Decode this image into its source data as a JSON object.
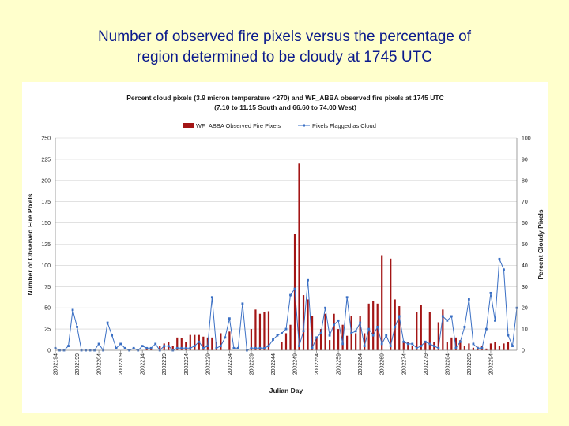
{
  "slide": {
    "title_line1": "Number of observed fire pixels versus the percentage of",
    "title_line2": "region determined to be cloudy at 1745 UTC"
  },
  "chart_data": {
    "type": "bar+line",
    "title_line1": "Percent cloud pixels (3.9 micron temperature <270) and WF_ABBA observed fire pixels at 1745 UTC",
    "title_line2": "(7.10 to 11.15 South and 66.60 to 74.00 West)",
    "xlabel": "Julian Day",
    "ylabel_left": "Number of Observed Fire Pixels",
    "ylabel_right": "Percent Cloudy Pixels",
    "ylim_left": [
      0,
      250
    ],
    "ylim_right": [
      0,
      100
    ],
    "yticks_left": [
      0,
      25,
      50,
      75,
      100,
      125,
      150,
      175,
      200,
      225,
      250
    ],
    "yticks_right": [
      0,
      10,
      20,
      30,
      40,
      50,
      60,
      70,
      80,
      90,
      100
    ],
    "x_tick_labels": [
      "2002194",
      "2002199",
      "2002204",
      "2002209",
      "2002214",
      "2002219",
      "2002224",
      "2002229",
      "2002234",
      "2002239",
      "2002244",
      "2002249",
      "2002254",
      "2002259",
      "2002264",
      "2002269",
      "2002274",
      "2002279",
      "2002284",
      "2002289",
      "2002294"
    ],
    "days_start": 2002194,
    "colors": {
      "bars": "#a31515",
      "line": "#3a6fc4",
      "grid": "#cfcfcf"
    },
    "legend": {
      "bars": "WF_ABBA Observed Fire Pixels",
      "line": "Pixels Flagged as Cloud",
      "position": "top-center"
    },
    "series": [
      {
        "name": "WF_ABBA Observed Fire Pixels",
        "axis": "left",
        "values": [
          0,
          0,
          0,
          0,
          0,
          0,
          0,
          0,
          0,
          0,
          0,
          0,
          0,
          0,
          0,
          0,
          0,
          0,
          0,
          0,
          0,
          2,
          3,
          0,
          5,
          8,
          10,
          5,
          15,
          14,
          10,
          18,
          18,
          18,
          16,
          15,
          15,
          10,
          20,
          0,
          22,
          0,
          0,
          0,
          0,
          25,
          48,
          43,
          45,
          46,
          0,
          0,
          10,
          20,
          30,
          137,
          220,
          65,
          60,
          40,
          15,
          25,
          43,
          12,
          43,
          25,
          30,
          17,
          40,
          20,
          40,
          20,
          55,
          58,
          55,
          112,
          0,
          108,
          60,
          52,
          10,
          10,
          5,
          45,
          53,
          10,
          45,
          10,
          33,
          48,
          10,
          15,
          15,
          12,
          5,
          8,
          3,
          4,
          5,
          2,
          8,
          10,
          5,
          8,
          10
        ]
      },
      {
        "name": "Pixels Flagged as Cloud",
        "axis": "right",
        "values": [
          1,
          0,
          0,
          2,
          19,
          11,
          0,
          0,
          0,
          0,
          3,
          0,
          13,
          7,
          1,
          3,
          1,
          0,
          1,
          0,
          2,
          1,
          1,
          3,
          0,
          2,
          2,
          0,
          1,
          1,
          1,
          1,
          2,
          4,
          1,
          2,
          25,
          1,
          2,
          6,
          15,
          1,
          1,
          22,
          0,
          1,
          1,
          1,
          1,
          2,
          5,
          7,
          8,
          10,
          26,
          29,
          2,
          9,
          33,
          1,
          6,
          8,
          20,
          7,
          12,
          14,
          3,
          25,
          8,
          9,
          13,
          2,
          10,
          7,
          11,
          3,
          7,
          2,
          11,
          16,
          4,
          3,
          3,
          1,
          2,
          4,
          3,
          2,
          1,
          16,
          14,
          16,
          1,
          4,
          11,
          24,
          3,
          1,
          1,
          10,
          27,
          14,
          43,
          38,
          7,
          2,
          20
        ]
      }
    ]
  }
}
